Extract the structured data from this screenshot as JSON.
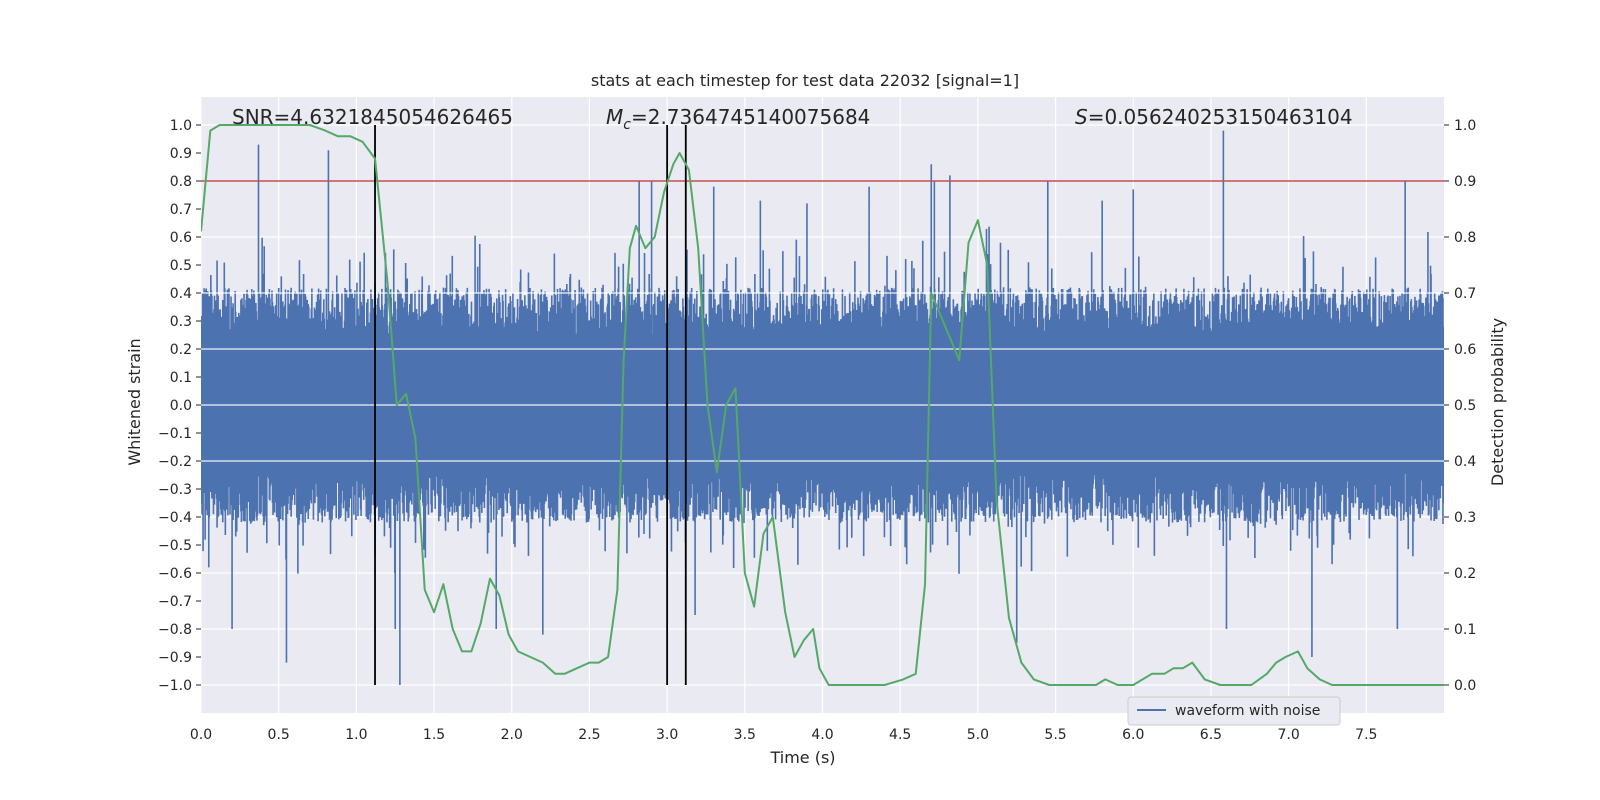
{
  "chart_data": {
    "type": "line",
    "title": "stats at each timestep for test data 22032 [signal=1]",
    "xlabel": "Time (s)",
    "ylabel": "Whitened strain",
    "y2label": "Detection probability",
    "xlim": [
      0.0,
      8.0
    ],
    "ylim": [
      -1.1,
      1.1
    ],
    "y2lim": [
      -0.05,
      1.05
    ],
    "xticks": [
      "0.0",
      "0.5",
      "1.0",
      "1.5",
      "2.0",
      "2.5",
      "3.0",
      "3.5",
      "4.0",
      "4.5",
      "5.0",
      "5.5",
      "6.0",
      "6.5",
      "7.0",
      "7.5"
    ],
    "yticks": [
      "1.0",
      "0.9",
      "0.8",
      "0.7",
      "0.6",
      "0.5",
      "0.4",
      "0.3",
      "0.2",
      "0.1",
      "0.0",
      "−0.1",
      "−0.2",
      "−0.3",
      "−0.4",
      "−0.5",
      "−0.6",
      "−0.7",
      "−0.8",
      "−0.9",
      "−1.0"
    ],
    "y2ticks": [
      "1.0",
      "0.9",
      "0.8",
      "0.7",
      "0.6",
      "0.5",
      "0.4",
      "0.3",
      "0.2",
      "0.1",
      "0.0"
    ],
    "grid": true,
    "legend": {
      "placement": "lower-center-right",
      "entries": [
        "waveform with noise"
      ]
    },
    "annotations": {
      "snr": "SNR=4.6321845054626465",
      "mc_symbol": "M",
      "mc_sub": "c",
      "mc_value": "=2.7364745140075684",
      "s_symbol": "S",
      "s_value": "=0.056240253150463104"
    },
    "threshold": {
      "value": 0.9,
      "axis": "y2",
      "color": "#c44e52"
    },
    "vertical_lines": [
      1.12,
      3.0,
      3.12
    ],
    "waveform": {
      "name": "waveform with noise",
      "color": "#4c72b0",
      "envelope_base": 0.42,
      "spikes": [
        {
          "x": 0.37,
          "y": 0.93
        },
        {
          "x": 0.82,
          "y": 0.91
        },
        {
          "x": 0.55,
          "y": -0.92
        },
        {
          "x": 0.2,
          "y": -0.8
        },
        {
          "x": 1.28,
          "y": -1.0
        },
        {
          "x": 1.25,
          "y": -0.8
        },
        {
          "x": 1.9,
          "y": -0.8
        },
        {
          "x": 2.2,
          "y": -0.82
        },
        {
          "x": 2.82,
          "y": 0.8
        },
        {
          "x": 2.9,
          "y": 0.8
        },
        {
          "x": 3.12,
          "y": -0.77
        },
        {
          "x": 3.18,
          "y": -0.75
        },
        {
          "x": 3.3,
          "y": 0.78
        },
        {
          "x": 4.3,
          "y": 0.78
        },
        {
          "x": 4.7,
          "y": 0.86
        },
        {
          "x": 4.82,
          "y": 0.82
        },
        {
          "x": 4.72,
          "y": 0.8
        },
        {
          "x": 5.25,
          "y": -0.85
        },
        {
          "x": 5.45,
          "y": 0.8
        },
        {
          "x": 6.58,
          "y": 0.98
        },
        {
          "x": 6.6,
          "y": -0.8
        },
        {
          "x": 7.15,
          "y": -0.9
        },
        {
          "x": 7.75,
          "y": 0.8
        },
        {
          "x": 7.7,
          "y": -0.8
        },
        {
          "x": 0.05,
          "y": -0.58
        },
        {
          "x": 3.6,
          "y": 0.73
        },
        {
          "x": 6.0,
          "y": 0.77
        },
        {
          "x": 5.8,
          "y": 0.73
        },
        {
          "x": 3.9,
          "y": 0.72
        }
      ]
    },
    "series": [
      {
        "name": "detection probability",
        "color": "#55a868",
        "axis": "y2",
        "x": [
          0.0,
          0.06,
          0.12,
          0.2,
          0.3,
          0.4,
          0.5,
          0.6,
          0.7,
          0.8,
          0.88,
          0.96,
          1.04,
          1.12,
          1.2,
          1.26,
          1.32,
          1.38,
          1.44,
          1.5,
          1.56,
          1.62,
          1.68,
          1.74,
          1.8,
          1.86,
          1.92,
          1.98,
          2.04,
          2.12,
          2.2,
          2.28,
          2.34,
          2.42,
          2.5,
          2.56,
          2.62,
          2.68,
          2.72,
          2.76,
          2.8,
          2.86,
          2.92,
          2.98,
          3.04,
          3.08,
          3.14,
          3.2,
          3.26,
          3.32,
          3.38,
          3.44,
          3.5,
          3.56,
          3.62,
          3.68,
          3.76,
          3.82,
          3.88,
          3.94,
          3.98,
          4.04,
          4.1,
          4.2,
          4.3,
          4.4,
          4.52,
          4.6,
          4.66,
          4.7,
          4.76,
          4.82,
          4.88,
          4.94,
          5.0,
          5.06,
          5.12,
          5.2,
          5.28,
          5.36,
          5.46,
          5.56,
          5.66,
          5.76,
          5.82,
          5.9,
          6.0,
          6.06,
          6.12,
          6.2,
          6.26,
          6.32,
          6.38,
          6.46,
          6.56,
          6.66,
          6.76,
          6.86,
          6.92,
          6.98,
          7.06,
          7.12,
          7.2,
          7.28,
          7.36,
          7.5,
          7.62,
          7.72,
          7.82,
          8.0
        ],
        "y": [
          0.81,
          0.99,
          1.0,
          1.0,
          1.0,
          1.0,
          1.0,
          1.0,
          1.0,
          0.99,
          0.98,
          0.98,
          0.97,
          0.94,
          0.72,
          0.5,
          0.52,
          0.44,
          0.17,
          0.13,
          0.18,
          0.1,
          0.06,
          0.06,
          0.11,
          0.19,
          0.16,
          0.09,
          0.06,
          0.05,
          0.04,
          0.02,
          0.02,
          0.03,
          0.04,
          0.04,
          0.05,
          0.17,
          0.58,
          0.78,
          0.82,
          0.78,
          0.8,
          0.88,
          0.93,
          0.95,
          0.92,
          0.78,
          0.5,
          0.38,
          0.5,
          0.53,
          0.2,
          0.14,
          0.27,
          0.3,
          0.13,
          0.05,
          0.08,
          0.1,
          0.03,
          0.0,
          0.0,
          0.0,
          0.0,
          0.0,
          0.01,
          0.02,
          0.18,
          0.7,
          0.66,
          0.62,
          0.58,
          0.79,
          0.83,
          0.75,
          0.33,
          0.12,
          0.04,
          0.01,
          0.0,
          0.0,
          0.0,
          0.0,
          0.01,
          0.0,
          0.0,
          0.01,
          0.02,
          0.02,
          0.03,
          0.03,
          0.04,
          0.01,
          0.0,
          0.0,
          0.0,
          0.02,
          0.04,
          0.05,
          0.06,
          0.03,
          0.01,
          0.0,
          0.0,
          0.0,
          0.0,
          0.0,
          0.0,
          0.0
        ]
      }
    ]
  }
}
